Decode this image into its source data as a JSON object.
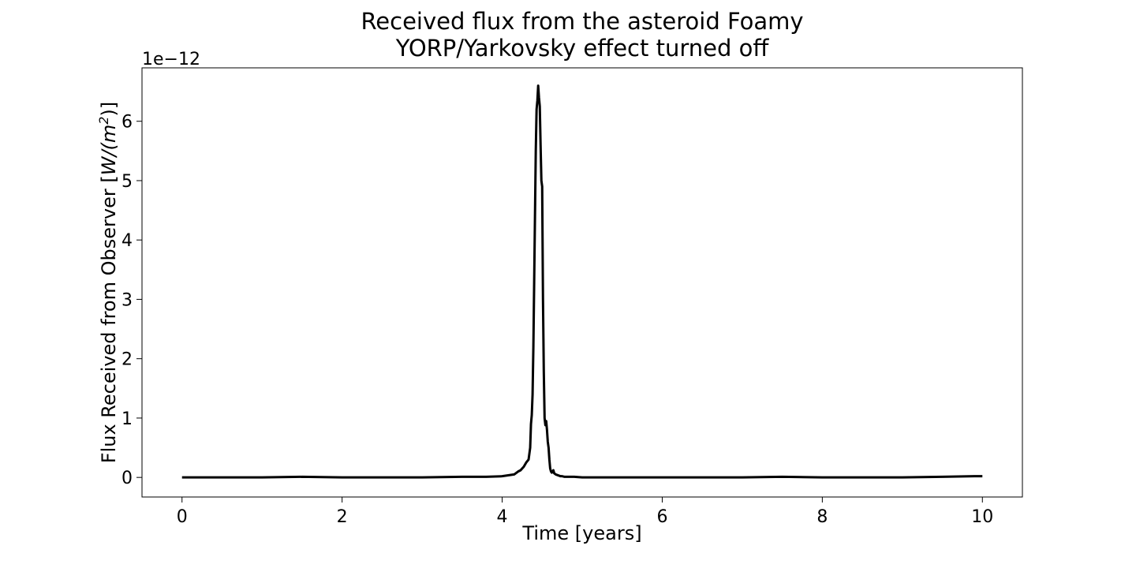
{
  "chart_data": {
    "type": "line",
    "title": "Received flux from the asteroid Foamy",
    "subtitle": "YORP/Yarkovsky effect turned off",
    "xlabel": "Time [years]",
    "ylabel_prefix": "Flux Received from Observer [",
    "ylabel_main": "W/(m",
    "ylabel_sup": "2",
    "ylabel_suffix": ")]",
    "y_offset_label": "1e−12",
    "y_multiplier": 1e-12,
    "xlim": [
      -0.5,
      10.5
    ],
    "ylim": [
      -0.33,
      6.9
    ],
    "xticks": [
      0,
      2,
      4,
      6,
      8,
      10
    ],
    "xtick_labels": [
      "0",
      "2",
      "4",
      "6",
      "8",
      "10"
    ],
    "yticks": [
      0,
      1,
      2,
      3,
      4,
      5,
      6
    ],
    "ytick_labels": [
      "0",
      "1",
      "2",
      "3",
      "4",
      "5",
      "6"
    ],
    "grid": false,
    "line_color": "#000000",
    "series": [
      {
        "x": [
          0,
          0.5,
          1.0,
          1.5,
          2.0,
          2.5,
          3.0,
          3.5,
          3.8,
          4.0,
          4.1,
          4.15,
          4.2,
          4.23,
          4.27,
          4.3,
          4.33,
          4.35,
          4.36,
          4.37,
          4.38,
          4.39,
          4.4,
          4.41,
          4.42,
          4.43,
          4.44,
          4.45,
          4.46,
          4.47,
          4.48,
          4.49,
          4.5,
          4.51,
          4.52,
          4.53,
          4.54,
          4.55,
          4.56,
          4.57,
          4.58,
          4.59,
          4.6,
          4.61,
          4.62,
          4.63,
          4.64,
          4.65,
          4.67,
          4.69,
          4.71,
          4.73,
          4.75,
          4.78,
          4.82,
          4.9,
          5.0,
          5.5,
          6.0,
          6.5,
          7.0,
          7.5,
          8.0,
          8.5,
          9.0,
          9.5,
          9.9,
          10.0
        ],
        "y": [
          0.0,
          0.0,
          0.0,
          0.01,
          0.0,
          0.0,
          0.0,
          0.01,
          0.01,
          0.02,
          0.04,
          0.05,
          0.1,
          0.12,
          0.18,
          0.25,
          0.3,
          0.5,
          0.9,
          1.05,
          1.4,
          2.2,
          3.3,
          4.4,
          5.5,
          6.2,
          6.35,
          6.6,
          6.4,
          6.25,
          5.6,
          5.0,
          4.9,
          3.0,
          1.8,
          1.0,
          0.88,
          0.95,
          0.8,
          0.6,
          0.5,
          0.3,
          0.15,
          0.1,
          0.08,
          0.1,
          0.12,
          0.07,
          0.05,
          0.04,
          0.03,
          0.02,
          0.02,
          0.01,
          0.01,
          0.01,
          0.0,
          0.0,
          0.0,
          0.0,
          0.0,
          0.01,
          0.0,
          0.0,
          0.0,
          0.01,
          0.02,
          0.02
        ]
      }
    ]
  }
}
